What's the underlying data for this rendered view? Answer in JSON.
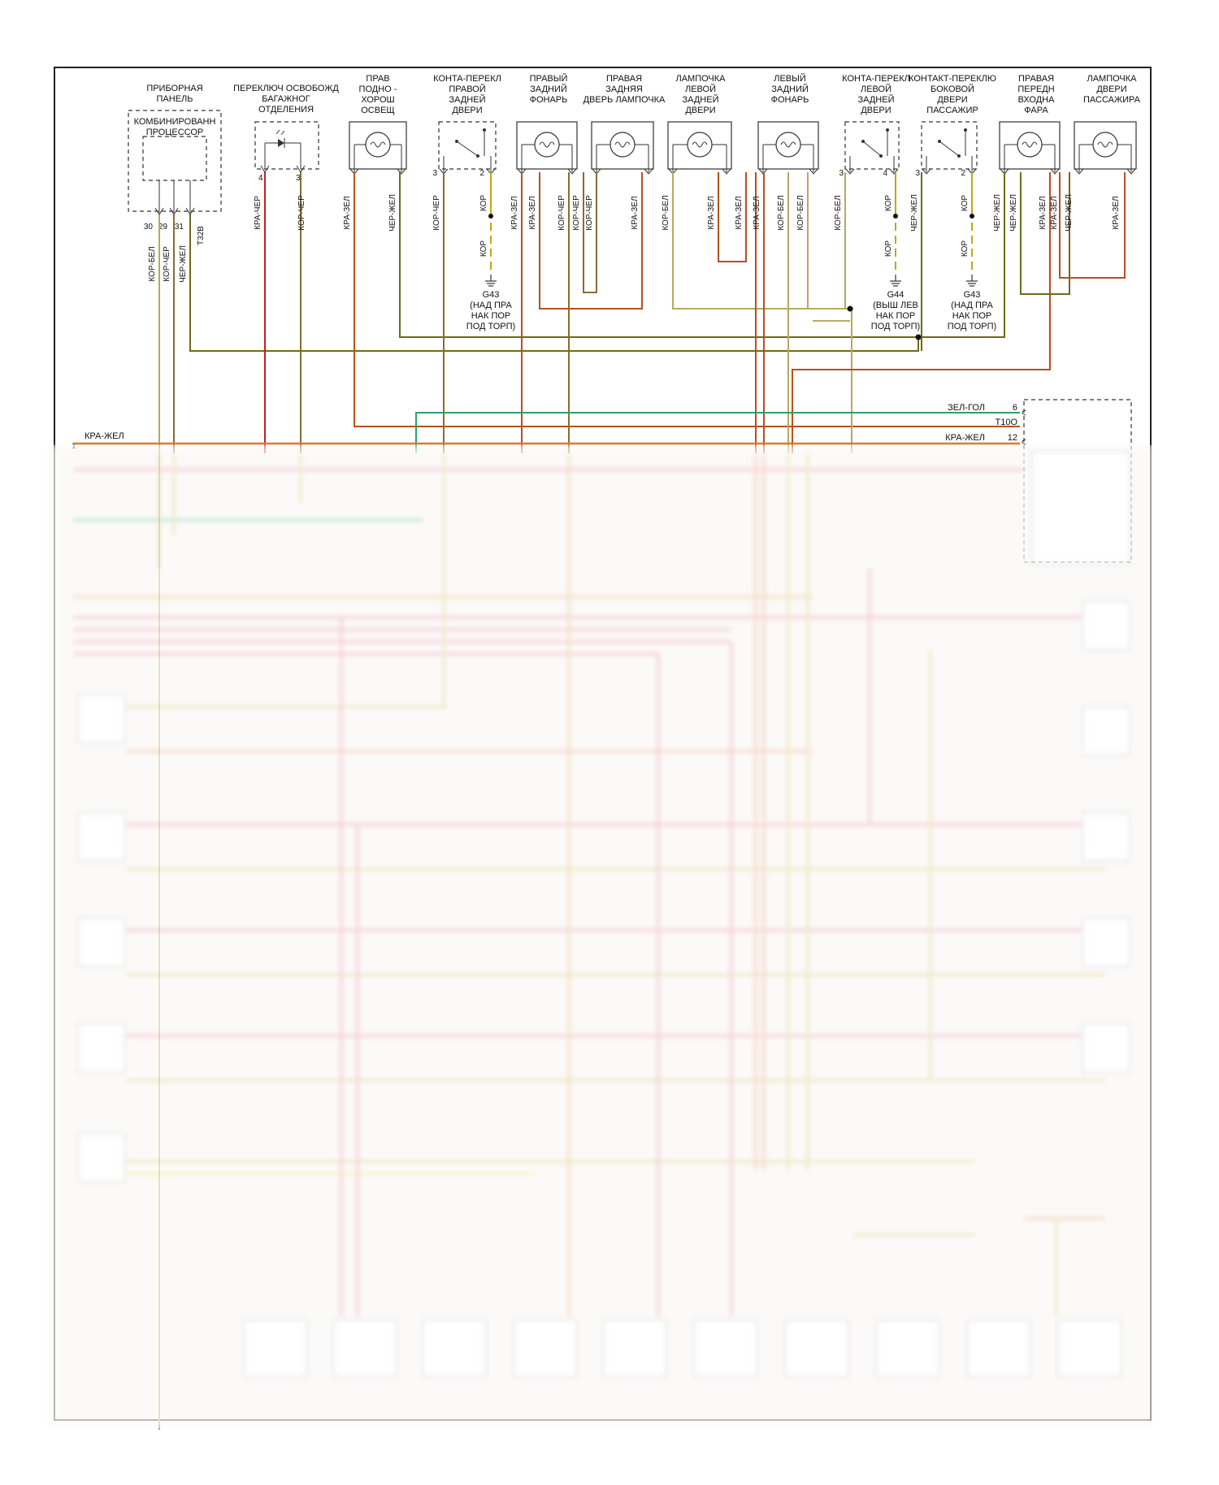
{
  "colors": {
    "frame": "#222222",
    "kra_zhel": "#d9771f",
    "kra_zel": "#b6501f",
    "kor_bel": "#b8a860",
    "kor_cher": "#8a6d2e",
    "cher_zhel": "#6e6a18",
    "kra_cher": "#c82020",
    "zel_gol": "#2ea068",
    "kor": "#c6a410",
    "pink": "#e88aa0",
    "blurred_yellow": "#d8c870"
  },
  "components": {
    "instrument_panel": {
      "title": "ПРИБОРНАЯ\nПАНЕЛЬ",
      "inner": "КОМБИНИРОВАНН\nПРОЦЕССОР",
      "pins": [
        "30",
        "29",
        "31"
      ],
      "connector": "T32B"
    },
    "trunk_switch": {
      "title": "ПЕРЕКЛЮЧ ОСВОБОЖД\nБАГАЖНОГ\nОТДЕЛЕНИЯ",
      "pins": [
        "4",
        "3"
      ]
    },
    "puddle_lamp": {
      "title": "ПРАВ\nПОДНО -\nХОРОШ\nОСВЕЩ"
    },
    "rr_door_switch": {
      "title": "КОНТА-ПЕРЕКЛ\nПРАВОЙ\nЗАДНЕЙ\nДВЕРИ",
      "pins": [
        "3",
        "2"
      ]
    },
    "right_tail_lamp": {
      "title": "ПРАВЫЙ\nЗАДНИЙ\nФОНАРЬ"
    },
    "rr_door_lamp": {
      "title": "ПРАВАЯ\nЗАДНЯЯ\nДВЕРЬ ЛАМПОЧКА"
    },
    "lr_door_lamp": {
      "title": "ЛАМПОЧКА\nЛЕВОЙ\nЗАДНЕЙ\nДВЕРИ"
    },
    "left_tail_lamp": {
      "title": "ЛЕВЫЙ\nЗАДНИЙ\nФОНАРЬ"
    },
    "lr_door_switch": {
      "title": "КОНТА-ПЕРЕКЛ\nЛЕВОЙ\nЗАДНЕЙ\nДВЕРИ",
      "pins": [
        "3",
        "4"
      ]
    },
    "pass_door_switch": {
      "title": "КОНТАКТ-ПЕРЕКЛЮ\nБОКОВОЙ\nДВЕРИ\nПАССАЖИР",
      "pins": [
        "3",
        "2"
      ]
    },
    "rf_entry_lamp": {
      "title": "ПРАВАЯ\nПЕРЕДН\nВХОДНА\nФАРА"
    },
    "pass_door_lamp": {
      "title": "ЛАМПОЧКА\nДВЕРИ\nПАССАЖИРА"
    }
  },
  "wires": {
    "kor_bel": "КОР-БЕЛ",
    "kor_cher": "КОР-ЧЕР",
    "cher_zhel": "ЧЕР-ЖЕЛ",
    "kra_cher": "КРА-ЧЕР",
    "kra_zel": "КРА-ЗЕЛ",
    "kor": "КОР",
    "kra_zhel": "КРА-ЖЕЛ",
    "zel_gol": "ЗЕЛ-ГОЛ"
  },
  "grounds": {
    "g43_a": {
      "id": "G43",
      "desc": "(НАД ПРА\nНАК ПОР\nПОД ТОРП)"
    },
    "g44": {
      "id": "G44",
      "desc": "(ВЫШ ЛЕВ\nНАК ПОР\nПОД ТОРП)"
    },
    "g43_b": {
      "id": "G43",
      "desc": "(НАД ПРА\nНАК ПОР\nПОД ТОРП)"
    }
  },
  "connector_t10": {
    "name": "T10O",
    "pin6": "6",
    "pin12": "12"
  },
  "bus": {
    "label": "КРА-ЖЕЛ",
    "number": "1"
  }
}
